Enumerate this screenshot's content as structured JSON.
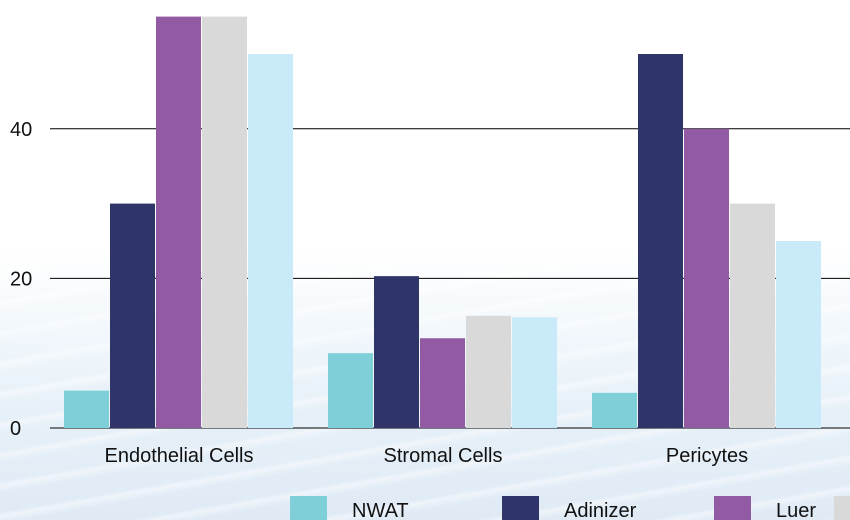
{
  "chart_data": {
    "type": "bar",
    "title": "",
    "xlabel": "",
    "ylabel": "",
    "categories": [
      "Endothelial Cells",
      "Stromal Cells",
      "Pericytes"
    ],
    "series": [
      {
        "name": "NWAT",
        "color": "#7ecfd8",
        "values": [
          5,
          10,
          4.7
        ]
      },
      {
        "name": "Adinizer",
        "color": "#2f3469",
        "values": [
          30,
          20.3,
          50
        ]
      },
      {
        "name": "Luer",
        "color": "#935aa4",
        "values": [
          55,
          12,
          40
        ]
      },
      {
        "name": "",
        "color": "#d9d9d9",
        "values": [
          55,
          15,
          30
        ]
      },
      {
        "name": "",
        "color": "#c9eaf9",
        "values": [
          50,
          14.8,
          25
        ]
      }
    ],
    "yticks": [
      0,
      20,
      40
    ],
    "ylim": [
      0,
      55
    ],
    "grid": true,
    "legend_position": "bottom"
  }
}
